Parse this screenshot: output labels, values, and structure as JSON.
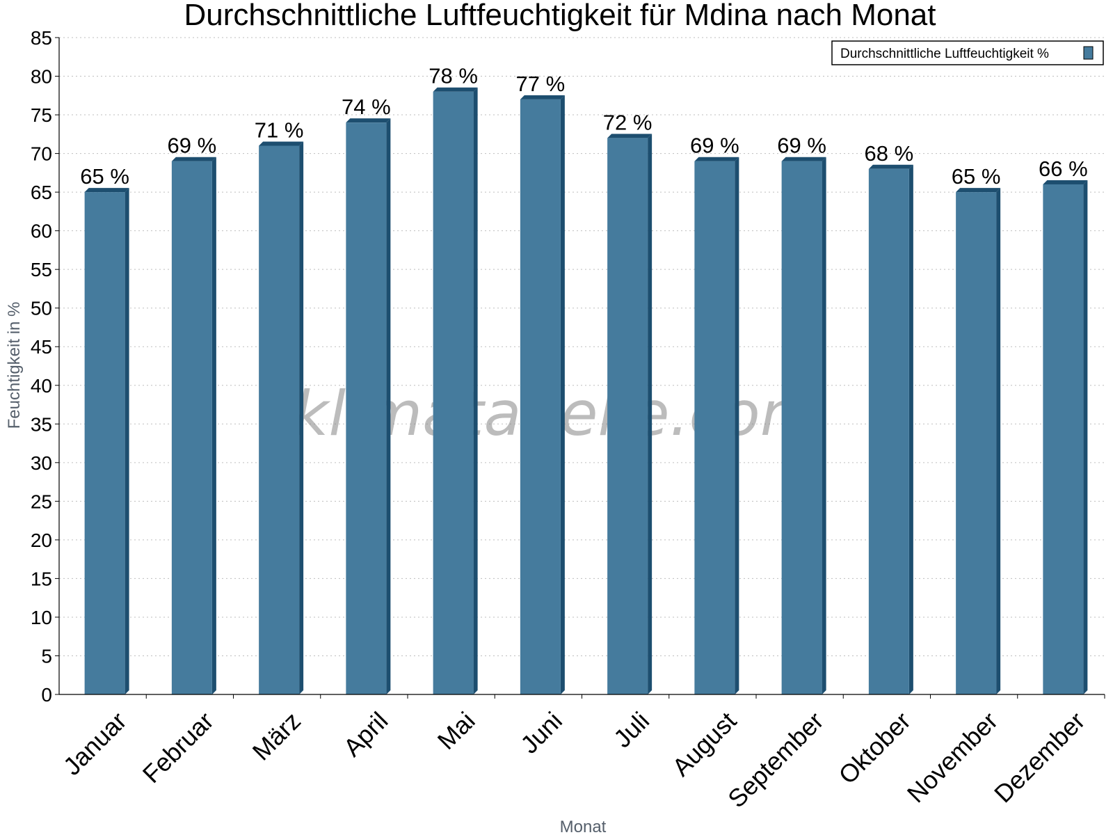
{
  "chart_data": {
    "type": "bar",
    "title": "Durchschnittliche Luftfeuchtigkeit für Mdina nach Monat",
    "xlabel": "Monat",
    "ylabel": "Feuchtigkeit in %",
    "ylim": [
      0,
      85
    ],
    "ytick_step": 5,
    "grid": true,
    "legend_position": "top-right",
    "value_suffix": " %",
    "categories": [
      "Januar",
      "Februar",
      "März",
      "April",
      "Mai",
      "Juni",
      "Juli",
      "August",
      "September",
      "Oktober",
      "November",
      "Dezember"
    ],
    "series": [
      {
        "name": "Durchschnittliche Luftfeuchtigkeit %",
        "values": [
          65,
          69,
          71,
          74,
          78,
          77,
          72,
          69,
          69,
          68,
          65,
          66
        ]
      }
    ],
    "colors": {
      "bar_face": "#457b9d",
      "bar_side": "#1d4e6f",
      "bar_top": "#1d4e6f"
    }
  },
  "watermark": "klimatabelle.com"
}
